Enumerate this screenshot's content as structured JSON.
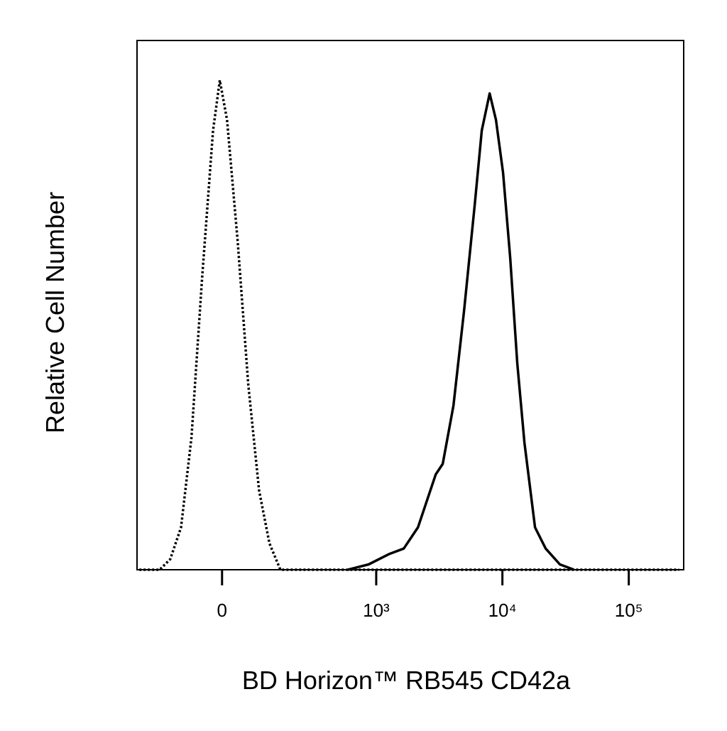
{
  "chart_data": {
    "type": "line",
    "x_label": "BD Horizon™ RB545 CD42a",
    "y_label": "Relative Cell Number",
    "x_scale": "biexponential",
    "xlim": [
      -272,
      272000
    ],
    "ylim": [
      0,
      100
    ],
    "xticks": [
      0,
      {
        "value": 1000,
        "label": "10³"
      },
      {
        "value": 10000,
        "label": "10⁴"
      },
      {
        "value": 100000,
        "label": "10⁵"
      }
    ],
    "series": [
      {
        "color": "#000000",
        "style": "dotted",
        "x": [
          -260,
          -169,
          -132,
          -99,
          -71,
          -45,
          -20,
          -5,
          11,
          35,
          60,
          88,
          118,
          154,
          1000,
          10000,
          100000,
          250000
        ],
        "values": [
          0,
          0,
          2,
          8,
          25,
          55,
          83,
          92.5,
          85,
          62,
          35,
          15,
          5,
          0,
          0,
          0,
          0,
          0
        ]
      },
      {
        "color": "#000000",
        "style": "solid",
        "x": [
          592,
          870,
          1279,
          1656,
          2145,
          2606,
          2965,
          3373,
          4096,
          4975,
          6039,
          6871,
          7924,
          8895,
          10130,
          11530,
          13120,
          14940,
          18130,
          22010,
          28510,
          36920
        ],
        "values": [
          0,
          1,
          3,
          4,
          8,
          14,
          18,
          20,
          31,
          49,
          69,
          83,
          90,
          85,
          75,
          59,
          39,
          24,
          8,
          4,
          1,
          0
        ]
      }
    ]
  }
}
